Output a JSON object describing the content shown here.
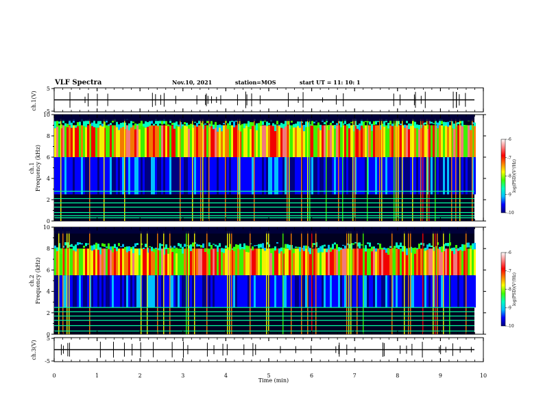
{
  "header": {
    "title": "VLF Spectra",
    "date": "Nov.10, 2021",
    "station": "station=MOS",
    "start": "start  UT =   11: 10: 1"
  },
  "chart_data": [
    {
      "panel": "ch1-waveform",
      "type": "line",
      "ylabel": "ch.1(V)",
      "ylim": [
        -5,
        5
      ],
      "yticks": [
        "5",
        "-5"
      ],
      "xlim": [
        0,
        10
      ],
      "baseline": 0
    },
    {
      "panel": "ch1-spectrogram",
      "type": "heatmap",
      "ylabel_channel": "ch.1",
      "ylabel": "Frequency (kHz)",
      "ylim": [
        0,
        10
      ],
      "yticks": [
        "0",
        "2",
        "4",
        "6",
        "8",
        "10"
      ],
      "xlim": [
        0,
        9.83
      ],
      "colorbar": {
        "label": "log(PSD)(V²/Hz)",
        "range": [
          -10,
          -6
        ],
        "ticks": [
          "-6",
          "-7",
          "-8",
          "-9",
          "-10"
        ]
      },
      "intense_band_khz": [
        6,
        9
      ],
      "lines_khz": [
        0.3,
        0.5,
        0.8,
        1.3,
        1.7,
        2.1,
        2.8
      ]
    },
    {
      "panel": "ch2-spectrogram",
      "type": "heatmap",
      "ylabel_channel": "ch.2",
      "ylabel": "Frequency (kHz)",
      "ylim": [
        0,
        10
      ],
      "yticks": [
        "0",
        "2",
        "4",
        "6",
        "8",
        "10"
      ],
      "xlim": [
        0,
        9.83
      ],
      "colorbar": {
        "label": "log(PSD)(V²/Hz)",
        "range": [
          -10,
          -6
        ],
        "ticks": [
          "-6",
          "-7",
          "-8",
          "-9",
          "-10"
        ]
      },
      "intense_band_khz": [
        5.5,
        8
      ],
      "lines_khz": [
        0.3,
        0.8,
        1.3,
        1.7,
        2.1,
        2.5
      ]
    },
    {
      "panel": "ch3-waveform",
      "type": "line",
      "ylabel": "ch.3(V)",
      "ylim": [
        -5,
        5
      ],
      "yticks": [
        "5",
        "-5"
      ],
      "xlim": [
        0,
        10
      ],
      "baseline": 0
    }
  ],
  "x_axis": {
    "label": "Time  (min)",
    "ticks": [
      "0",
      "1",
      "2",
      "3",
      "4",
      "5",
      "6",
      "7",
      "8",
      "9",
      "10"
    ]
  },
  "colors": {
    "colormap": [
      "#000080",
      "#0000ff",
      "#00c0ff",
      "#00ffc0",
      "#40ff00",
      "#ffff00",
      "#ff8000",
      "#ff0000",
      "#ff8080",
      "#ffffff"
    ],
    "background": "#000020",
    "lines": "#00ffa0"
  }
}
